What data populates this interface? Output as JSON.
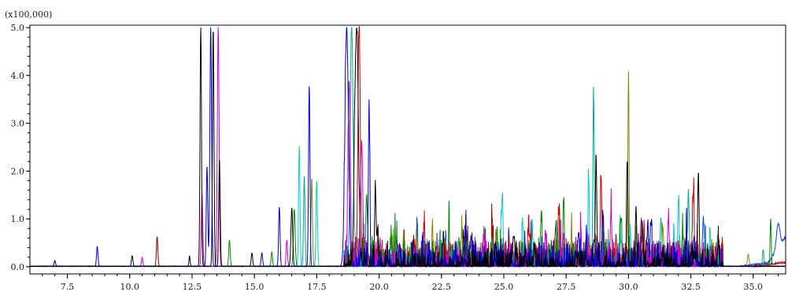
{
  "chart_data": {
    "type": "line",
    "title": "",
    "xlabel": "",
    "ylabel": "",
    "y_scale_label": "(x100,000)",
    "xlim": [
      6.0,
      36.3
    ],
    "ylim": [
      -0.15,
      5.05
    ],
    "x_ticks": [
      "7.5",
      "10.0",
      "12.5",
      "15.0",
      "17.5",
      "20.0",
      "22.5",
      "25.0",
      "27.5",
      "30.0",
      "32.5",
      "35.0"
    ],
    "y_ticks": [
      "0.0",
      "1.0",
      "2.0",
      "3.0",
      "4.0",
      "5.0"
    ],
    "grid": false,
    "legend": "none",
    "colors": [
      "#000000",
      "#0000cc",
      "#cc00cc",
      "#00aa88",
      "#008800",
      "#cc0000",
      "#00cccc",
      "#888800",
      "#880000",
      "#0044ff"
    ],
    "peaks": [
      [
        7.0,
        0.12,
        0.05,
        0
      ],
      [
        8.7,
        0.42,
        0.05,
        1
      ],
      [
        10.1,
        0.22,
        0.05,
        0
      ],
      [
        10.5,
        0.18,
        0.05,
        2
      ],
      [
        11.1,
        0.62,
        0.05,
        8
      ],
      [
        12.4,
        0.22,
        0.04,
        0
      ],
      [
        12.85,
        5.0,
        0.05,
        0
      ],
      [
        12.9,
        1.55,
        0.05,
        2
      ],
      [
        13.1,
        2.1,
        0.05,
        1
      ],
      [
        13.25,
        5.0,
        0.06,
        1
      ],
      [
        13.35,
        5.0,
        0.05,
        0
      ],
      [
        13.55,
        5.0,
        0.06,
        2
      ],
      [
        13.6,
        2.25,
        0.05,
        0
      ],
      [
        14.0,
        0.55,
        0.05,
        4
      ],
      [
        14.9,
        0.28,
        0.05,
        0
      ],
      [
        15.3,
        0.28,
        0.05,
        1
      ],
      [
        15.7,
        0.3,
        0.05,
        4
      ],
      [
        16.0,
        1.25,
        0.05,
        1
      ],
      [
        16.3,
        0.55,
        0.05,
        2
      ],
      [
        16.5,
        1.22,
        0.06,
        0
      ],
      [
        16.6,
        1.2,
        0.06,
        4
      ],
      [
        16.8,
        2.5,
        0.05,
        6
      ],
      [
        17.0,
        1.9,
        0.05,
        3
      ],
      [
        17.2,
        3.8,
        0.05,
        1
      ],
      [
        17.3,
        1.85,
        0.05,
        7
      ],
      [
        17.5,
        1.8,
        0.05,
        6
      ],
      [
        18.7,
        5.0,
        0.12,
        1
      ],
      [
        18.8,
        3.8,
        0.08,
        2
      ],
      [
        18.9,
        5.0,
        0.1,
        3
      ],
      [
        19.1,
        5.0,
        0.12,
        0
      ],
      [
        19.2,
        5.0,
        0.08,
        5
      ],
      [
        19.3,
        2.5,
        0.08,
        2
      ],
      [
        19.5,
        1.5,
        0.06,
        4
      ],
      [
        19.6,
        3.4,
        0.05,
        1
      ],
      [
        19.85,
        1.7,
        0.05,
        0
      ],
      [
        20.1,
        0.4,
        0.07,
        8
      ],
      [
        21.0,
        0.45,
        0.08,
        4
      ],
      [
        21.8,
        0.48,
        0.08,
        5
      ],
      [
        22.4,
        0.5,
        0.08,
        6
      ],
      [
        23.2,
        0.6,
        0.08,
        3
      ],
      [
        23.7,
        0.55,
        0.08,
        1
      ],
      [
        24.2,
        0.55,
        0.08,
        2
      ],
      [
        24.9,
        0.95,
        0.06,
        6
      ],
      [
        25.4,
        0.6,
        0.08,
        0
      ],
      [
        26.0,
        0.7,
        0.08,
        5
      ],
      [
        26.5,
        0.75,
        0.08,
        4
      ],
      [
        27.2,
        1.15,
        0.06,
        5
      ],
      [
        27.4,
        1.4,
        0.05,
        4
      ],
      [
        28.0,
        0.7,
        0.07,
        1
      ],
      [
        28.4,
        1.4,
        0.05,
        6
      ],
      [
        28.6,
        3.55,
        0.05,
        3
      ],
      [
        28.7,
        2.3,
        0.05,
        0
      ],
      [
        28.9,
        1.9,
        0.05,
        5
      ],
      [
        29.3,
        1.2,
        0.05,
        2
      ],
      [
        29.7,
        0.9,
        0.06,
        4
      ],
      [
        30.0,
        4.05,
        0.04,
        7
      ],
      [
        29.95,
        2.2,
        0.05,
        0
      ],
      [
        30.3,
        1.2,
        0.05,
        0
      ],
      [
        30.9,
        0.9,
        0.06,
        1
      ],
      [
        31.3,
        1.0,
        0.06,
        3
      ],
      [
        31.6,
        0.95,
        0.06,
        2
      ],
      [
        32.0,
        1.4,
        0.05,
        6
      ],
      [
        32.4,
        1.6,
        0.05,
        3
      ],
      [
        32.6,
        1.55,
        0.06,
        5
      ],
      [
        32.8,
        1.9,
        0.05,
        0
      ],
      [
        33.0,
        1.0,
        0.06,
        9
      ],
      [
        33.6,
        0.5,
        0.05,
        0
      ],
      [
        34.8,
        0.25,
        0.06,
        7
      ],
      [
        35.4,
        0.35,
        0.05,
        3
      ],
      [
        35.7,
        1.0,
        0.04,
        4
      ],
      [
        36.0,
        0.5,
        0.12,
        9
      ]
    ],
    "baseline_drift": [
      [
        34.5,
        36.3,
        0.12,
        9
      ],
      [
        35.0,
        36.3,
        0.08,
        5
      ],
      [
        35.6,
        36.3,
        0.5,
        9
      ]
    ],
    "grass_region": [
      18.6,
      33.8
    ]
  }
}
